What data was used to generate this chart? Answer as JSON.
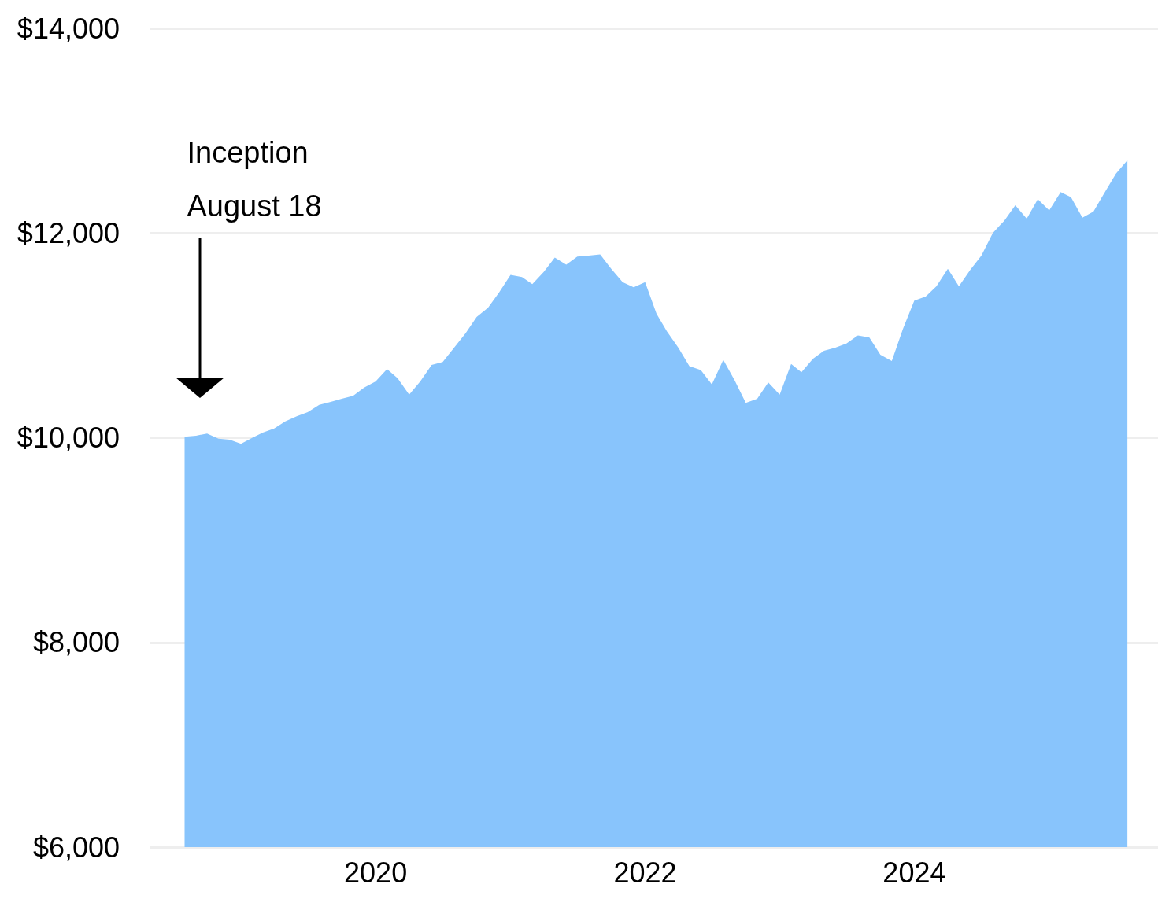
{
  "chart_data": {
    "type": "area",
    "color": "#88c4fc",
    "x": [
      "2018-08",
      "2018-09",
      "2018-10",
      "2018-11",
      "2018-12",
      "2019-01",
      "2019-02",
      "2019-03",
      "2019-04",
      "2019-05",
      "2019-06",
      "2019-07",
      "2019-08",
      "2019-09",
      "2019-10",
      "2019-11",
      "2019-12",
      "2020-01",
      "2020-02",
      "2020-03",
      "2020-04",
      "2020-05",
      "2020-06",
      "2020-07",
      "2020-08",
      "2020-09",
      "2020-10",
      "2020-11",
      "2020-12",
      "2021-01",
      "2021-02",
      "2021-03",
      "2021-04",
      "2021-05",
      "2021-06",
      "2021-07",
      "2021-08",
      "2021-09",
      "2021-10",
      "2021-11",
      "2021-12",
      "2022-01",
      "2022-02",
      "2022-03",
      "2022-04",
      "2022-05",
      "2022-06",
      "2022-07",
      "2022-08",
      "2022-09",
      "2022-10",
      "2022-11",
      "2022-12",
      "2023-01",
      "2023-02",
      "2023-03",
      "2023-04",
      "2023-05",
      "2023-06",
      "2023-07",
      "2023-08",
      "2023-09",
      "2023-10",
      "2023-11",
      "2023-12",
      "2024-01",
      "2024-02",
      "2024-03",
      "2024-04",
      "2024-05",
      "2024-06",
      "2024-07",
      "2024-08",
      "2024-09",
      "2024-10",
      "2024-11",
      "2024-12",
      "2025-01",
      "2025-02",
      "2025-03",
      "2025-04",
      "2025-05",
      "2025-06",
      "2025-07",
      "2025-08"
    ],
    "values": [
      10010,
      10020,
      10040,
      9990,
      9980,
      9940,
      10000,
      10050,
      10090,
      10160,
      10210,
      10250,
      10320,
      10350,
      10380,
      10410,
      10490,
      10550,
      10670,
      10580,
      10420,
      10550,
      10710,
      10740,
      10880,
      11020,
      11180,
      11270,
      11420,
      11590,
      11570,
      11500,
      11620,
      11760,
      11690,
      11770,
      11780,
      11790,
      11650,
      11520,
      11470,
      11520,
      11210,
      11040,
      10880,
      10700,
      10660,
      10520,
      10760,
      10560,
      10340,
      10380,
      10540,
      10420,
      10720,
      10640,
      10770,
      10850,
      10880,
      10920,
      11000,
      10980,
      10810,
      10750,
      11060,
      11340,
      11380,
      11480,
      11650,
      11480,
      11640,
      11780,
      12000,
      12120,
      12270,
      12140,
      12330,
      12220,
      12400,
      12350,
      12150,
      12210,
      12400,
      12580,
      12710
    ],
    "xlim": [
      "2018-04-28",
      "2025-10-23"
    ],
    "xticks": [
      "2020",
      "2022",
      "2024"
    ],
    "ylim": [
      6000,
      14000
    ],
    "yticks": [
      {
        "value": 6000,
        "label": "$6,000"
      },
      {
        "value": 8000,
        "label": "$8,000"
      },
      {
        "value": 10000,
        "label": "$10,000"
      },
      {
        "value": 12000,
        "label": "$12,000"
      },
      {
        "value": 14000,
        "label": "$14,000"
      }
    ],
    "grid": "y",
    "annotations": [
      "Inception\nAugust 18"
    ]
  }
}
